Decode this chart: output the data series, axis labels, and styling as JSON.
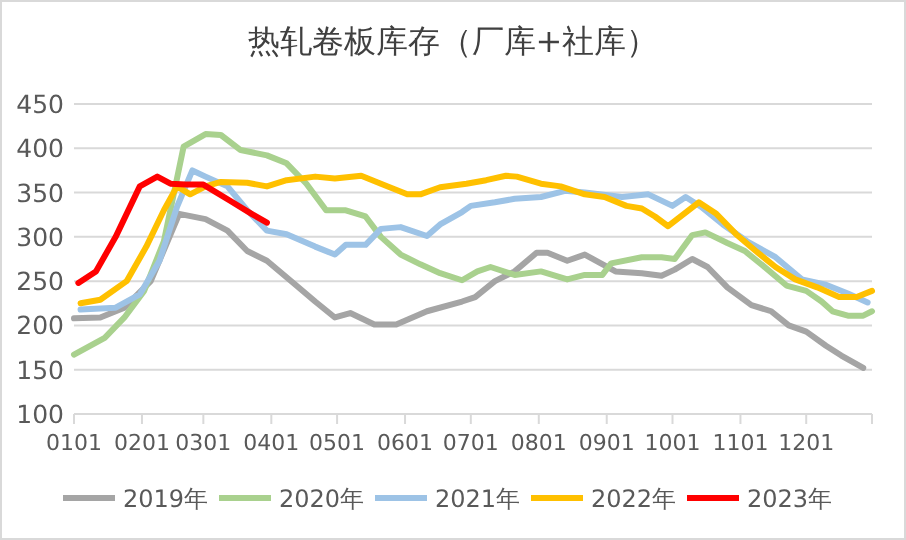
{
  "chart_data": {
    "type": "line",
    "title": "热轧卷板库存（厂库+社库）",
    "xlim": [
      "--01-01",
      "--12-31"
    ],
    "xticks": [
      {
        "value": "--01-01",
        "label": "0101"
      },
      {
        "value": "--02-01",
        "label": "0201"
      },
      {
        "value": "--03-01",
        "label": "0301"
      },
      {
        "value": "--04-01",
        "label": "0401"
      },
      {
        "value": "--05-01",
        "label": "0501"
      },
      {
        "value": "--06-01",
        "label": "0601"
      },
      {
        "value": "--07-01",
        "label": "0701"
      },
      {
        "value": "--08-01",
        "label": "0801"
      },
      {
        "value": "--09-01",
        "label": "0901"
      },
      {
        "value": "--10-01",
        "label": "1001"
      },
      {
        "value": "--11-01",
        "label": "1101"
      },
      {
        "value": "--12-01",
        "label": "1201"
      }
    ],
    "ylim": [
      100,
      450
    ],
    "yticks": [
      100,
      150,
      200,
      250,
      300,
      350,
      400,
      450
    ],
    "grid": "y",
    "legend": "bottom",
    "series": [
      {
        "name": "2019年",
        "color": "#a5a5a5",
        "x": [
          "--01-01",
          "--01-13",
          "--01-24",
          "--02-05",
          "--02-18",
          "--03-02",
          "--03-12",
          "--03-21",
          "--03-30",
          "--04-12",
          "--04-21",
          "--04-30",
          "--05-07",
          "--05-18",
          "--05-28",
          "--06-11",
          "--06-27",
          "--07-03",
          "--07-12",
          "--07-21",
          "--07-31",
          "--08-05",
          "--08-14",
          "--08-22",
          "--09-05",
          "--09-17",
          "--09-26",
          "--10-02",
          "--10-10",
          "--10-17",
          "--10-26",
          "--11-06",
          "--11-15",
          "--11-23",
          "--12-01",
          "--12-10",
          "--12-17",
          "--12-27"
        ],
        "values": [
          208,
          209,
          220,
          250,
          326,
          320,
          307,
          284,
          273,
          246,
          227,
          209,
          214,
          201,
          201,
          216,
          227,
          232,
          250,
          261,
          282,
          282,
          273,
          280,
          261,
          259,
          256,
          263,
          275,
          266,
          243,
          223,
          216,
          200,
          193,
          177,
          166,
          152
        ]
      },
      {
        "name": "2020年",
        "color": "#a9d18e",
        "x": [
          "--01-01",
          "--01-15",
          "--01-24",
          "--02-02",
          "--02-11",
          "--02-20",
          "--03-02",
          "--03-09",
          "--03-18",
          "--03-30",
          "--04-08",
          "--04-17",
          "--04-26",
          "--05-05",
          "--05-14",
          "--05-21",
          "--05-30",
          "--06-08",
          "--06-17",
          "--06-27",
          "--07-04",
          "--07-10",
          "--07-21",
          "--08-02",
          "--08-14",
          "--08-22",
          "--08-30",
          "--09-03",
          "--09-17",
          "--09-26",
          "--10-02",
          "--10-10",
          "--10-16",
          "--10-26",
          "--11-03",
          "--11-11",
          "--11-22",
          "--12-01",
          "--12-08",
          "--12-13",
          "--12-20",
          "--12-27",
          "--12-31"
        ],
        "values": [
          167,
          186,
          209,
          239,
          295,
          402,
          416,
          415,
          398,
          392,
          383,
          360,
          330,
          330,
          323,
          300,
          280,
          269,
          259,
          251,
          261,
          266,
          257,
          261,
          252,
          257,
          257,
          270,
          277,
          277,
          275,
          302,
          305,
          293,
          284,
          268,
          245,
          239,
          227,
          216,
          211,
          211,
          216
        ]
      },
      {
        "name": "2021年",
        "color": "#9dc3e6",
        "x": [
          "--01-04",
          "--01-20",
          "--01-31",
          "--02-09",
          "--02-17",
          "--02-24",
          "--03-02",
          "--03-12",
          "--03-21",
          "--03-30",
          "--04-08",
          "--04-21",
          "--04-30",
          "--05-05",
          "--05-14",
          "--05-21",
          "--05-30",
          "--06-11",
          "--06-17",
          "--06-27",
          "--07-01",
          "--07-12",
          "--07-21",
          "--08-02",
          "--08-13",
          "--08-22",
          "--09-08",
          "--09-20",
          "--10-01",
          "--10-07",
          "--10-14",
          "--10-24",
          "--11-04",
          "--11-17",
          "--11-29",
          "--12-10",
          "--12-20",
          "--12-29"
        ],
        "values": [
          218,
          220,
          235,
          273,
          334,
          375,
          368,
          357,
          330,
          307,
          303,
          289,
          280,
          291,
          291,
          309,
          311,
          301,
          314,
          328,
          335,
          339,
          343,
          345,
          352,
          350,
          345,
          348,
          335,
          345,
          334,
          314,
          295,
          277,
          252,
          246,
          236,
          226
        ]
      },
      {
        "name": "2022年",
        "color": "#ffc000",
        "x": [
          "--01-04",
          "--01-13",
          "--01-25",
          "--02-03",
          "--02-11",
          "--02-17",
          "--02-23",
          "--03-02",
          "--03-09",
          "--03-21",
          "--03-30",
          "--04-08",
          "--04-21",
          "--04-30",
          "--05-12",
          "--05-21",
          "--06-02",
          "--06-08",
          "--06-17",
          "--06-29",
          "--07-08",
          "--07-17",
          "--07-22",
          "--08-02",
          "--08-11",
          "--08-22",
          "--08-31",
          "--09-10",
          "--09-17",
          "--09-23",
          "--09-29",
          "--10-13",
          "--10-21",
          "--10-30",
          "--11-08",
          "--11-17",
          "--11-26",
          "--12-06",
          "--12-16",
          "--12-24",
          "--12-31"
        ],
        "values": [
          225,
          229,
          250,
          289,
          330,
          357,
          348,
          357,
          362,
          361,
          357,
          364,
          368,
          366,
          369,
          360,
          348,
          348,
          356,
          360,
          364,
          369,
          368,
          360,
          357,
          348,
          345,
          335,
          332,
          323,
          312,
          339,
          326,
          303,
          284,
          266,
          252,
          243,
          232,
          232,
          239
        ]
      },
      {
        "name": "2023年",
        "color": "#ff0000",
        "x": [
          "--01-03",
          "--01-11",
          "--01-20",
          "--01-31",
          "--02-08",
          "--02-14",
          "--02-21",
          "--03-01",
          "--03-13",
          "--03-23",
          "--03-30"
        ],
        "values": [
          248,
          261,
          300,
          357,
          368,
          360,
          359,
          359,
          341,
          326,
          316
        ]
      }
    ]
  }
}
